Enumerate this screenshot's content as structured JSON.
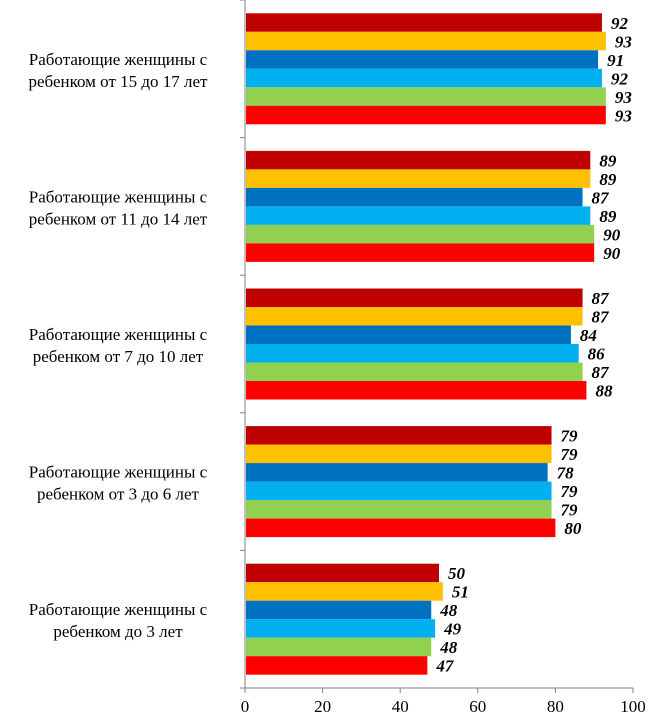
{
  "chart_data": {
    "type": "bar",
    "orientation": "horizontal",
    "title": "",
    "xlabel": "",
    "ylabel": "",
    "xlim": [
      0,
      100
    ],
    "x_ticks": [
      "0",
      "20",
      "40",
      "60",
      "80",
      "100"
    ],
    "grid": false,
    "legend": "none",
    "categories": [
      "Работающие женщины с ребенком от 15 до 17 лет",
      "Работающие женщины с ребенком от 11 до 14 лет",
      "Работающие женщины с ребенком от 7 до 10 лет",
      "Работающие женщины с ребенком от 3 до 6 лет",
      "Работающие женщины с ребенком до 3 лет"
    ],
    "category_lines": [
      [
        "Работающие женщины с",
        "ребенком от 15 до 17 лет"
      ],
      [
        "Работающие женщины с",
        "ребенком от 11 до 14 лет"
      ],
      [
        "Работающие женщины с",
        "ребенком от 7 до 10 лет"
      ],
      [
        "Работающие женщины с",
        "ребенком от 3 до 6 лет"
      ],
      [
        "Работающие женщины с",
        "ребенком до 3 лет"
      ]
    ],
    "series": [
      {
        "color": "#C00000",
        "values": [
          92,
          89,
          87,
          79,
          50
        ]
      },
      {
        "color": "#FFC000",
        "values": [
          93,
          89,
          87,
          79,
          51
        ]
      },
      {
        "color": "#0070C0",
        "values": [
          91,
          87,
          84,
          78,
          48
        ]
      },
      {
        "color": "#00B0F0",
        "values": [
          92,
          89,
          86,
          79,
          49
        ]
      },
      {
        "color": "#92D050",
        "values": [
          93,
          90,
          87,
          79,
          48
        ]
      },
      {
        "color": "#FF0000",
        "values": [
          93,
          90,
          88,
          80,
          47
        ]
      }
    ]
  }
}
